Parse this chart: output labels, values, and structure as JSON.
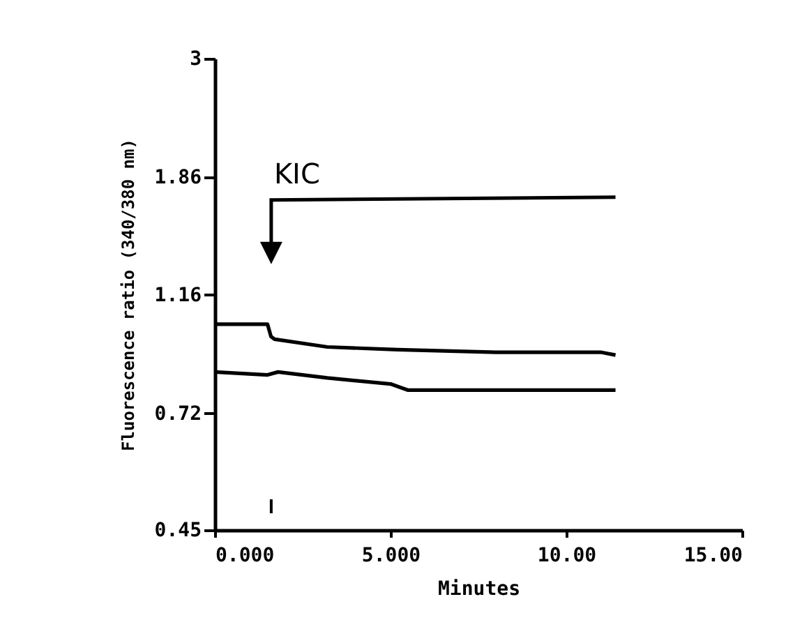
{
  "chart_data": {
    "type": "line",
    "xlabel": "Minutes",
    "ylabel": "Fluorescence ratio (340/380 nm)",
    "xlim": [
      0,
      15
    ],
    "xticks": [
      {
        "value": 0,
        "label": "0.000"
      },
      {
        "value": 5,
        "label": "5.000"
      },
      {
        "value": 10,
        "label": "10.00"
      },
      {
        "value": 15,
        "label": "15.00"
      }
    ],
    "ylim": [
      0.45,
      3
    ],
    "yticks": [
      0.45,
      0.72,
      1.16,
      1.86,
      3
    ],
    "log": "y",
    "grid": false,
    "legend": false,
    "series": [
      {
        "color": "#000000",
        "x": [
          0,
          1.5,
          1.6,
          1.7,
          3.2,
          5.2,
          8,
          11,
          11.4
        ],
        "values": [
          1.03,
          1.03,
          0.98,
          0.97,
          0.94,
          0.93,
          0.92,
          0.92,
          0.91
        ]
      },
      {
        "color": "#000000",
        "x": [
          0,
          1.5,
          1.8,
          3.2,
          5.0,
          5.5,
          8,
          11.4
        ],
        "values": [
          0.85,
          0.84,
          0.85,
          0.83,
          0.81,
          0.79,
          0.79,
          0.79
        ]
      }
    ],
    "annotations": [
      "KIC"
    ]
  }
}
